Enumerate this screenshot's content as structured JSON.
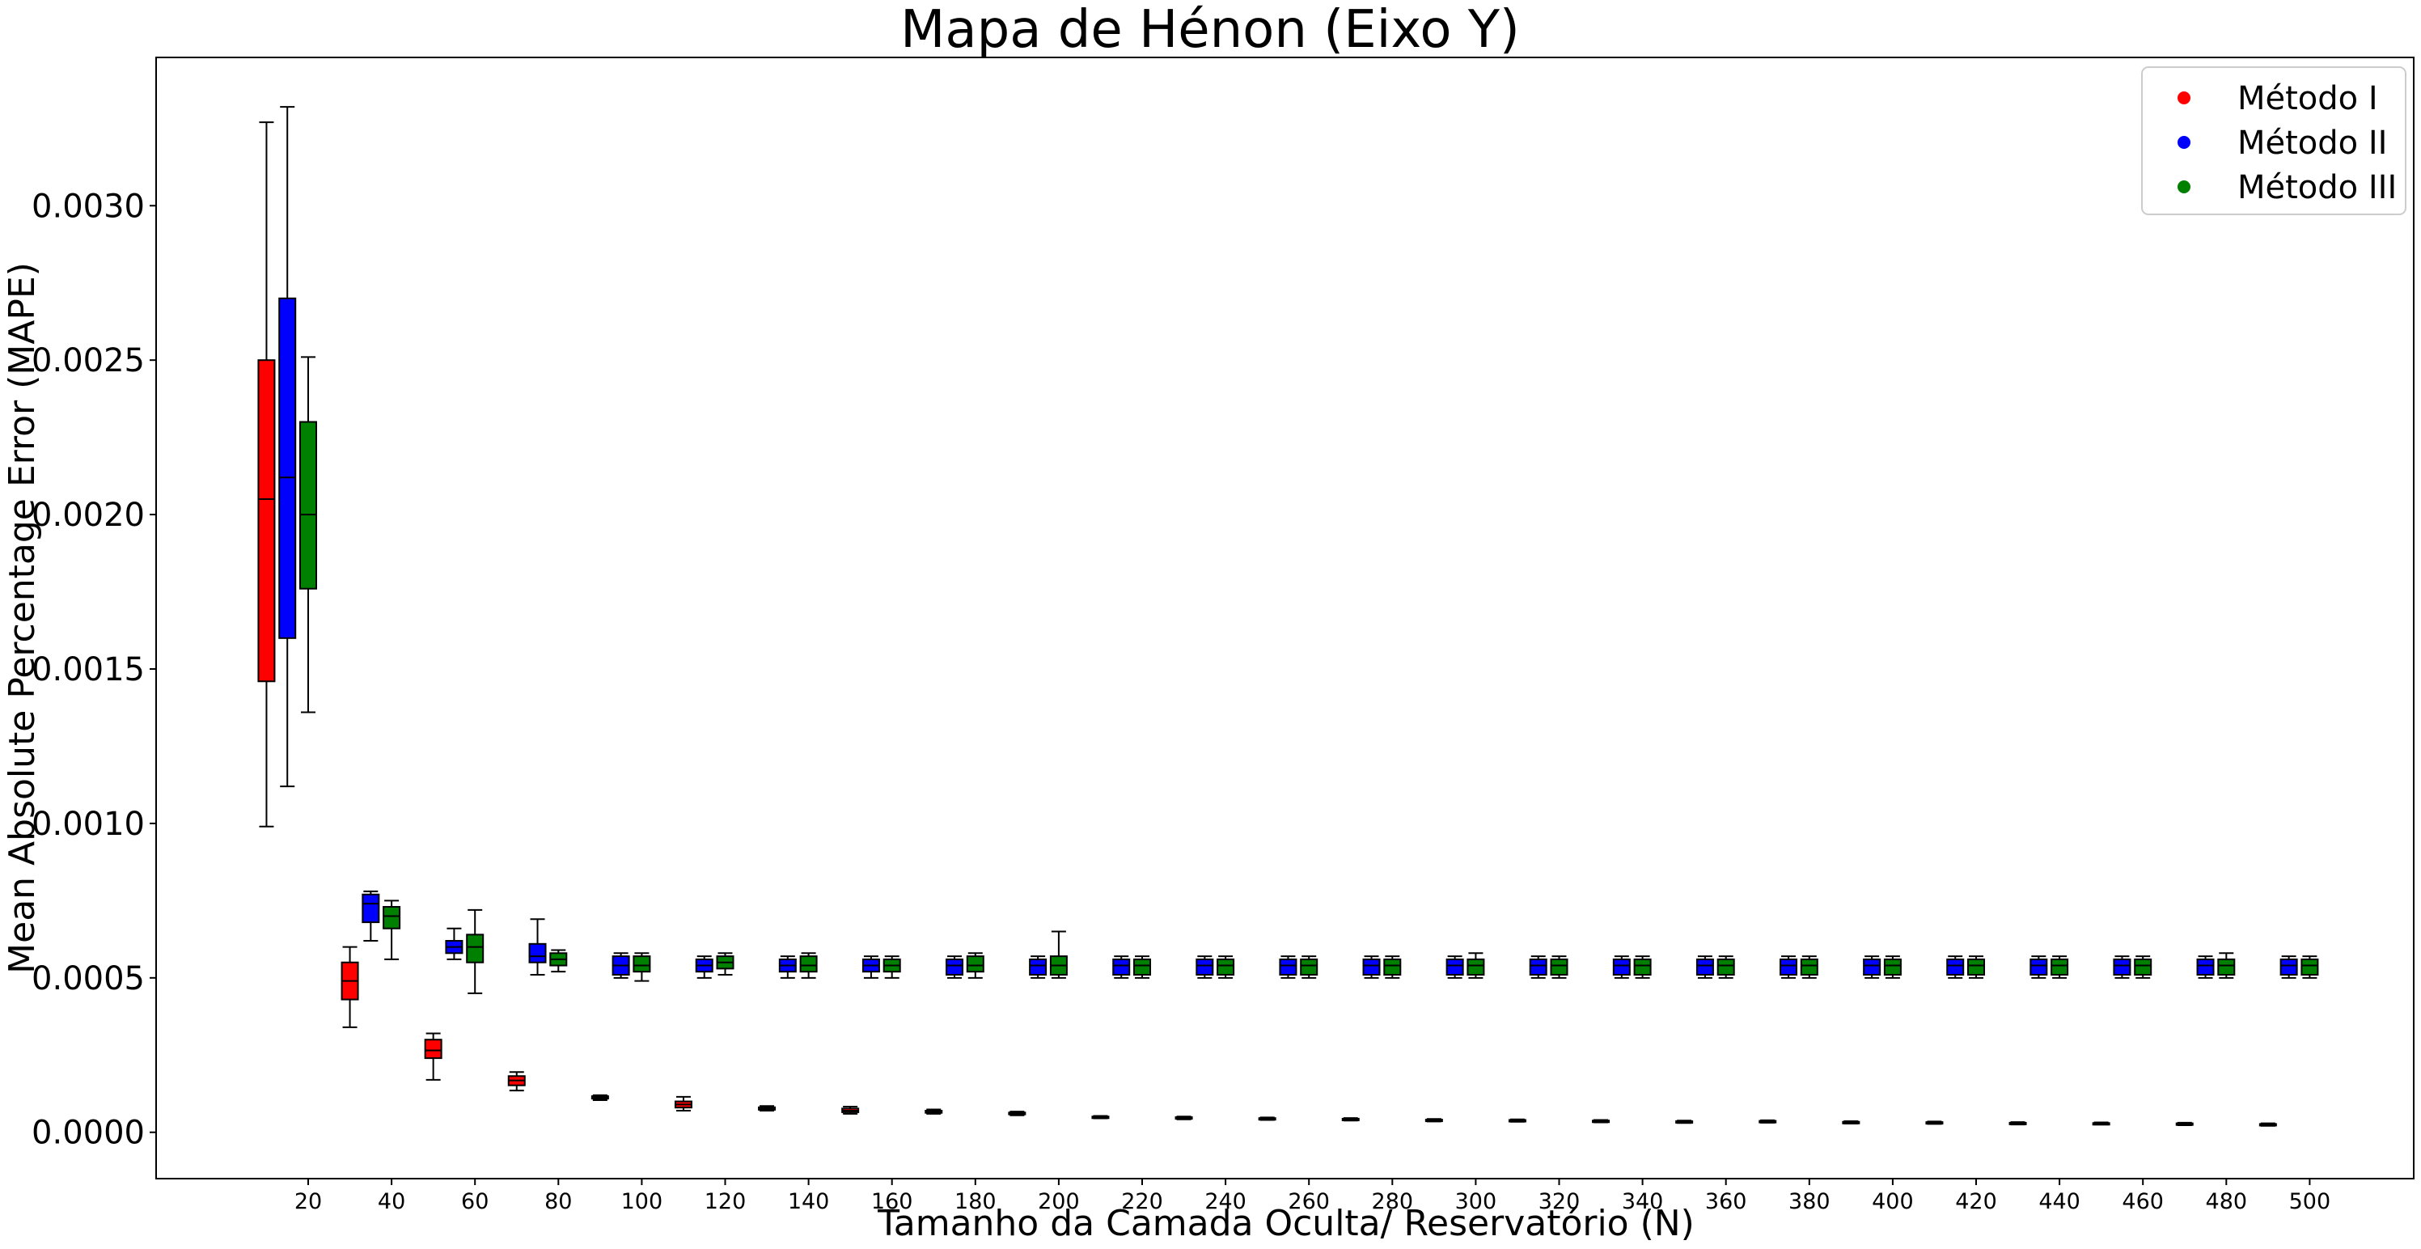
{
  "chart_data": {
    "type": "box",
    "title": "Mapa de Hénon (Eixo Y)",
    "xlabel": "Tamanho da Camada Oculta/ Reservatório (N)",
    "ylabel": "Mean Absolute Percentage Error (MAPE)",
    "ylim": [
      -0.00015,
      0.00348
    ],
    "yticks": [
      "0.0000",
      "0.0005",
      "0.0010",
      "0.0015",
      "0.0020",
      "0.0025",
      "0.0030"
    ],
    "x_categories": [
      "20",
      "40",
      "60",
      "80",
      "100",
      "120",
      "140",
      "160",
      "180",
      "200",
      "220",
      "240",
      "260",
      "280",
      "300",
      "320",
      "340",
      "360",
      "380",
      "400",
      "420",
      "440",
      "460",
      "480",
      "500"
    ],
    "grid": false,
    "legend_position": "top-right",
    "series": [
      {
        "name": "Método I",
        "color": "#ff0000",
        "offset": 0.5,
        "boxes": [
          {
            "whislo": 0.00099,
            "q1": 0.00146,
            "med": 0.00205,
            "q3": 0.0025,
            "whishi": 0.00327
          },
          {
            "whislo": 0.00034,
            "q1": 0.00043,
            "med": 0.00049,
            "q3": 0.00055,
            "whishi": 0.0006
          },
          {
            "whislo": 0.00017,
            "q1": 0.00024,
            "med": 0.000265,
            "q3": 0.0003,
            "whishi": 0.00032
          },
          {
            "whislo": 0.000135,
            "q1": 0.000152,
            "med": 0.000168,
            "q3": 0.000182,
            "whishi": 0.000195
          },
          {
            "whislo": 0.000104,
            "q1": 0.000109,
            "med": 0.000113,
            "q3": 0.000117,
            "whishi": 0.00012
          },
          {
            "whislo": 7e-05,
            "q1": 8e-05,
            "med": 9e-05,
            "q3": 0.0001,
            "whishi": 0.000115
          },
          {
            "whislo": 7e-05,
            "q1": 7.3e-05,
            "med": 7.7e-05,
            "q3": 8.1e-05,
            "whishi": 8.5e-05
          },
          {
            "whislo": 6e-05,
            "q1": 6.5e-05,
            "med": 7e-05,
            "q3": 7.7e-05,
            "whishi": 8.3e-05
          },
          {
            "whislo": 6e-05,
            "q1": 6.3e-05,
            "med": 6.7e-05,
            "q3": 7e-05,
            "whishi": 7.4e-05
          },
          {
            "whislo": 5.5e-05,
            "q1": 5.8e-05,
            "med": 6.1e-05,
            "q3": 6.4e-05,
            "whishi": 6.7e-05
          },
          {
            "whislo": 4.5e-05,
            "q1": 4.7e-05,
            "med": 4.9e-05,
            "q3": 5.1e-05,
            "whishi": 5.3e-05
          },
          {
            "whislo": 4.2e-05,
            "q1": 4.4e-05,
            "med": 4.6e-05,
            "q3": 4.9e-05,
            "whishi": 5.1e-05
          },
          {
            "whislo": 4e-05,
            "q1": 4.2e-05,
            "med": 4.4e-05,
            "q3": 4.6e-05,
            "whishi": 4.8e-05
          },
          {
            "whislo": 3.8e-05,
            "q1": 4e-05,
            "med": 4.2e-05,
            "q3": 4.4e-05,
            "whishi": 4.6e-05
          },
          {
            "whislo": 3.5e-05,
            "q1": 3.7e-05,
            "med": 3.9e-05,
            "q3": 4.1e-05,
            "whishi": 4.3e-05
          },
          {
            "whislo": 3.4e-05,
            "q1": 3.6e-05,
            "med": 3.8e-05,
            "q3": 4e-05,
            "whishi": 4.2e-05
          },
          {
            "whislo": 3.2e-05,
            "q1": 3.4e-05,
            "med": 3.6e-05,
            "q3": 3.8e-05,
            "whishi": 4e-05
          },
          {
            "whislo": 3e-05,
            "q1": 3.2e-05,
            "med": 3.4e-05,
            "q3": 3.6e-05,
            "whishi": 3.8e-05
          },
          {
            "whislo": 3.1e-05,
            "q1": 3.3e-05,
            "med": 3.5e-05,
            "q3": 3.7e-05,
            "whishi": 3.9e-05
          },
          {
            "whislo": 2.8e-05,
            "q1": 3e-05,
            "med": 3.2e-05,
            "q3": 3.4e-05,
            "whishi": 3.6e-05
          },
          {
            "whislo": 2.7e-05,
            "q1": 2.9e-05,
            "med": 3.1e-05,
            "q3": 3.3e-05,
            "whishi": 3.5e-05
          },
          {
            "whislo": 2.5e-05,
            "q1": 2.7e-05,
            "med": 2.9e-05,
            "q3": 3.1e-05,
            "whishi": 3.3e-05
          },
          {
            "whislo": 2.5e-05,
            "q1": 2.7e-05,
            "med": 2.8e-05,
            "q3": 3e-05,
            "whishi": 3.2e-05
          },
          {
            "whislo": 2.3e-05,
            "q1": 2.5e-05,
            "med": 2.7e-05,
            "q3": 2.9e-05,
            "whishi": 3.1e-05
          },
          {
            "whislo": 2.1e-05,
            "q1": 2.3e-05,
            "med": 2.5e-05,
            "q3": 2.7e-05,
            "whishi": 2.9e-05
          }
        ]
      },
      {
        "name": "Método II",
        "color": "#0000ff",
        "offset": 0.25,
        "boxes": [
          {
            "whislo": 0.00112,
            "q1": 0.0016,
            "med": 0.00212,
            "q3": 0.0027,
            "whishi": 0.00332
          },
          {
            "whislo": 0.00062,
            "q1": 0.00068,
            "med": 0.00074,
            "q3": 0.00077,
            "whishi": 0.00078
          },
          {
            "whislo": 0.00056,
            "q1": 0.00058,
            "med": 0.0006,
            "q3": 0.00062,
            "whishi": 0.00066
          },
          {
            "whislo": 0.00051,
            "q1": 0.00055,
            "med": 0.00057,
            "q3": 0.00061,
            "whishi": 0.00069
          },
          {
            "whislo": 0.0005,
            "q1": 0.00051,
            "med": 0.00054,
            "q3": 0.00057,
            "whishi": 0.00058
          },
          {
            "whislo": 0.0005,
            "q1": 0.00052,
            "med": 0.00054,
            "q3": 0.00056,
            "whishi": 0.00057
          },
          {
            "whislo": 0.0005,
            "q1": 0.00052,
            "med": 0.00054,
            "q3": 0.00056,
            "whishi": 0.00057
          },
          {
            "whislo": 0.0005,
            "q1": 0.00052,
            "med": 0.00054,
            "q3": 0.00056,
            "whishi": 0.00057
          },
          {
            "whislo": 0.0005,
            "q1": 0.00051,
            "med": 0.00054,
            "q3": 0.00056,
            "whishi": 0.00057
          },
          {
            "whislo": 0.0005,
            "q1": 0.00051,
            "med": 0.00054,
            "q3": 0.00056,
            "whishi": 0.00057
          },
          {
            "whislo": 0.0005,
            "q1": 0.00051,
            "med": 0.00054,
            "q3": 0.00056,
            "whishi": 0.00057
          },
          {
            "whislo": 0.0005,
            "q1": 0.00051,
            "med": 0.00054,
            "q3": 0.00056,
            "whishi": 0.00057
          },
          {
            "whislo": 0.0005,
            "q1": 0.00051,
            "med": 0.00054,
            "q3": 0.00056,
            "whishi": 0.00057
          },
          {
            "whislo": 0.0005,
            "q1": 0.00051,
            "med": 0.00054,
            "q3": 0.00056,
            "whishi": 0.00057
          },
          {
            "whislo": 0.0005,
            "q1": 0.00051,
            "med": 0.00054,
            "q3": 0.00056,
            "whishi": 0.00057
          },
          {
            "whislo": 0.0005,
            "q1": 0.00051,
            "med": 0.00054,
            "q3": 0.00056,
            "whishi": 0.00057
          },
          {
            "whislo": 0.0005,
            "q1": 0.00051,
            "med": 0.00054,
            "q3": 0.00056,
            "whishi": 0.00057
          },
          {
            "whislo": 0.0005,
            "q1": 0.00051,
            "med": 0.00054,
            "q3": 0.00056,
            "whishi": 0.00057
          },
          {
            "whislo": 0.0005,
            "q1": 0.00051,
            "med": 0.00054,
            "q3": 0.00056,
            "whishi": 0.00057
          },
          {
            "whislo": 0.0005,
            "q1": 0.00051,
            "med": 0.00054,
            "q3": 0.00056,
            "whishi": 0.00057
          },
          {
            "whislo": 0.0005,
            "q1": 0.00051,
            "med": 0.00054,
            "q3": 0.00056,
            "whishi": 0.00057
          },
          {
            "whislo": 0.0005,
            "q1": 0.00051,
            "med": 0.00054,
            "q3": 0.00056,
            "whishi": 0.00057
          },
          {
            "whislo": 0.0005,
            "q1": 0.00051,
            "med": 0.00054,
            "q3": 0.00056,
            "whishi": 0.00057
          },
          {
            "whislo": 0.0005,
            "q1": 0.00051,
            "med": 0.00054,
            "q3": 0.00056,
            "whishi": 0.00057
          },
          {
            "whislo": 0.0005,
            "q1": 0.00051,
            "med": 0.00054,
            "q3": 0.00056,
            "whishi": 0.00057
          }
        ]
      },
      {
        "name": "Método III",
        "color": "#008000",
        "offset": 0.0,
        "boxes": [
          {
            "whislo": 0.00136,
            "q1": 0.00176,
            "med": 0.002,
            "q3": 0.0023,
            "whishi": 0.00251
          },
          {
            "whislo": 0.00056,
            "q1": 0.00066,
            "med": 0.0007,
            "q3": 0.00073,
            "whishi": 0.00075
          },
          {
            "whislo": 0.00045,
            "q1": 0.00055,
            "med": 0.0006,
            "q3": 0.00064,
            "whishi": 0.00072
          },
          {
            "whislo": 0.00052,
            "q1": 0.00054,
            "med": 0.00056,
            "q3": 0.00058,
            "whishi": 0.00059
          },
          {
            "whislo": 0.00049,
            "q1": 0.00052,
            "med": 0.00054,
            "q3": 0.00057,
            "whishi": 0.00058
          },
          {
            "whislo": 0.00051,
            "q1": 0.00053,
            "med": 0.00055,
            "q3": 0.00057,
            "whishi": 0.00058
          },
          {
            "whislo": 0.0005,
            "q1": 0.00052,
            "med": 0.00054,
            "q3": 0.00057,
            "whishi": 0.00058
          },
          {
            "whislo": 0.0005,
            "q1": 0.00052,
            "med": 0.00054,
            "q3": 0.00056,
            "whishi": 0.00057
          },
          {
            "whislo": 0.0005,
            "q1": 0.00052,
            "med": 0.00054,
            "q3": 0.00057,
            "whishi": 0.00058
          },
          {
            "whislo": 0.0005,
            "q1": 0.00051,
            "med": 0.00054,
            "q3": 0.00057,
            "whishi": 0.00065
          },
          {
            "whislo": 0.0005,
            "q1": 0.00051,
            "med": 0.00054,
            "q3": 0.00056,
            "whishi": 0.00057
          },
          {
            "whislo": 0.0005,
            "q1": 0.00051,
            "med": 0.00054,
            "q3": 0.00056,
            "whishi": 0.00057
          },
          {
            "whislo": 0.0005,
            "q1": 0.00051,
            "med": 0.00054,
            "q3": 0.00056,
            "whishi": 0.00057
          },
          {
            "whislo": 0.0005,
            "q1": 0.00051,
            "med": 0.00054,
            "q3": 0.00056,
            "whishi": 0.00057
          },
          {
            "whislo": 0.0005,
            "q1": 0.00051,
            "med": 0.00054,
            "q3": 0.00056,
            "whishi": 0.00058
          },
          {
            "whislo": 0.0005,
            "q1": 0.00051,
            "med": 0.00054,
            "q3": 0.00056,
            "whishi": 0.00057
          },
          {
            "whislo": 0.0005,
            "q1": 0.00051,
            "med": 0.00054,
            "q3": 0.00056,
            "whishi": 0.00057
          },
          {
            "whislo": 0.0005,
            "q1": 0.00051,
            "med": 0.00054,
            "q3": 0.00056,
            "whishi": 0.00057
          },
          {
            "whislo": 0.0005,
            "q1": 0.00051,
            "med": 0.00054,
            "q3": 0.00056,
            "whishi": 0.00057
          },
          {
            "whislo": 0.0005,
            "q1": 0.00051,
            "med": 0.00054,
            "q3": 0.00056,
            "whishi": 0.00057
          },
          {
            "whislo": 0.0005,
            "q1": 0.00051,
            "med": 0.00054,
            "q3": 0.00056,
            "whishi": 0.00057
          },
          {
            "whislo": 0.0005,
            "q1": 0.00051,
            "med": 0.00054,
            "q3": 0.00056,
            "whishi": 0.00057
          },
          {
            "whislo": 0.0005,
            "q1": 0.00051,
            "med": 0.00054,
            "q3": 0.00056,
            "whishi": 0.00057
          },
          {
            "whislo": 0.0005,
            "q1": 0.00051,
            "med": 0.00054,
            "q3": 0.00056,
            "whishi": 0.00058
          },
          {
            "whislo": 0.0005,
            "q1": 0.00051,
            "med": 0.00054,
            "q3": 0.00056,
            "whishi": 0.00057
          }
        ]
      }
    ]
  }
}
